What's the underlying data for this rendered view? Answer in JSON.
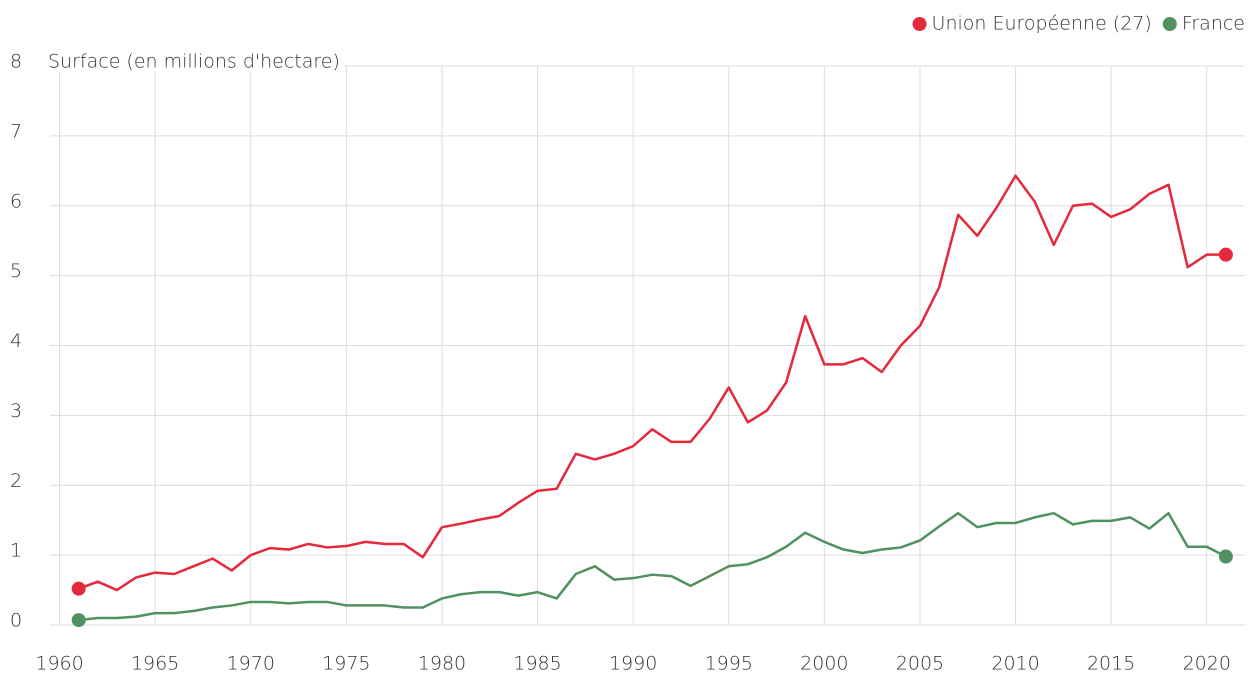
{
  "chart_data": {
    "type": "line",
    "y_label": "Surface (en millions d'hectare)",
    "x": [
      1961,
      1962,
      1963,
      1964,
      1965,
      1966,
      1967,
      1968,
      1969,
      1970,
      1971,
      1972,
      1973,
      1974,
      1975,
      1976,
      1977,
      1978,
      1979,
      1980,
      1981,
      1982,
      1983,
      1984,
      1985,
      1986,
      1987,
      1988,
      1989,
      1990,
      1991,
      1992,
      1993,
      1994,
      1995,
      1996,
      1997,
      1998,
      1999,
      2000,
      2001,
      2002,
      2003,
      2004,
      2005,
      2006,
      2007,
      2008,
      2009,
      2010,
      2011,
      2012,
      2013,
      2014,
      2015,
      2016,
      2017,
      2018,
      2019,
      2020,
      2021
    ],
    "series": [
      {
        "name": "Union Européenne (27)",
        "color": "#e5283c",
        "values": [
          0.52,
          0.62,
          0.5,
          0.68,
          0.75,
          0.73,
          0.84,
          0.95,
          0.78,
          1.0,
          1.1,
          1.08,
          1.16,
          1.11,
          1.13,
          1.19,
          1.16,
          1.16,
          0.97,
          1.4,
          1.45,
          1.51,
          1.56,
          1.75,
          1.92,
          1.95,
          2.45,
          2.37,
          2.45,
          2.56,
          2.8,
          2.62,
          2.62,
          2.95,
          3.4,
          2.9,
          3.07,
          3.47,
          4.42,
          3.73,
          3.73,
          3.82,
          3.62,
          4.0,
          4.28,
          4.83,
          5.87,
          5.57,
          5.97,
          6.43,
          6.06,
          5.44,
          6.0,
          6.03,
          5.84,
          5.95,
          6.17,
          6.3,
          5.12,
          5.3,
          5.3
        ]
      },
      {
        "name": "France",
        "color": "#4f9160",
        "values": [
          0.07,
          0.1,
          0.1,
          0.12,
          0.17,
          0.17,
          0.2,
          0.25,
          0.28,
          0.33,
          0.33,
          0.31,
          0.33,
          0.33,
          0.28,
          0.28,
          0.28,
          0.25,
          0.25,
          0.38,
          0.44,
          0.47,
          0.47,
          0.42,
          0.47,
          0.38,
          0.73,
          0.84,
          0.65,
          0.67,
          0.72,
          0.7,
          0.56,
          0.7,
          0.84,
          0.87,
          0.97,
          1.12,
          1.32,
          1.19,
          1.08,
          1.03,
          1.08,
          1.11,
          1.21,
          1.41,
          1.6,
          1.4,
          1.46,
          1.46,
          1.54,
          1.6,
          1.44,
          1.49,
          1.49,
          1.54,
          1.38,
          1.6,
          1.12,
          1.12,
          0.98
        ]
      }
    ],
    "xlim": [
      1959.5,
      2022
    ],
    "xticks": [
      1960,
      1965,
      1970,
      1975,
      1980,
      1985,
      1990,
      1995,
      2000,
      2005,
      2010,
      2015,
      2020
    ],
    "ylim": [
      0,
      8
    ],
    "yticks": [
      0,
      1,
      2,
      3,
      4,
      5,
      6,
      7,
      8
    ],
    "grid": true,
    "legend": "top-right"
  }
}
